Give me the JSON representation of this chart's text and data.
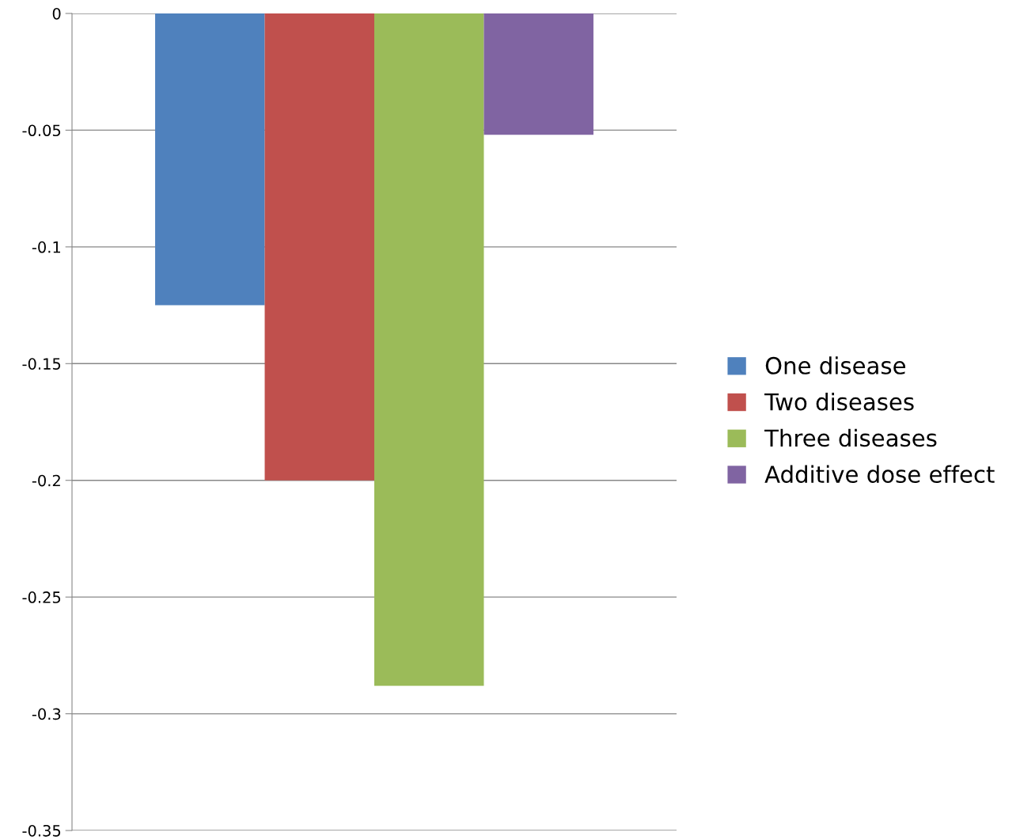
{
  "chart_data": {
    "type": "bar",
    "categories": [
      null
    ],
    "series": [
      {
        "name": "One disease",
        "color": "#4f81bd",
        "values": [
          -0.125
        ]
      },
      {
        "name": "Two diseases",
        "color": "#c0504d",
        "values": [
          -0.2
        ]
      },
      {
        "name": "Three diseases",
        "color": "#9bbb59",
        "values": [
          -0.288
        ]
      },
      {
        "name": "Additive dose effect",
        "color": "#8064a2",
        "values": [
          -0.052
        ]
      }
    ],
    "ylim": [
      -0.35,
      0
    ],
    "yticks": [
      0,
      -0.05,
      -0.1,
      -0.15,
      -0.2,
      -0.25,
      -0.3,
      -0.35
    ],
    "grid": "y",
    "legend": "right"
  }
}
